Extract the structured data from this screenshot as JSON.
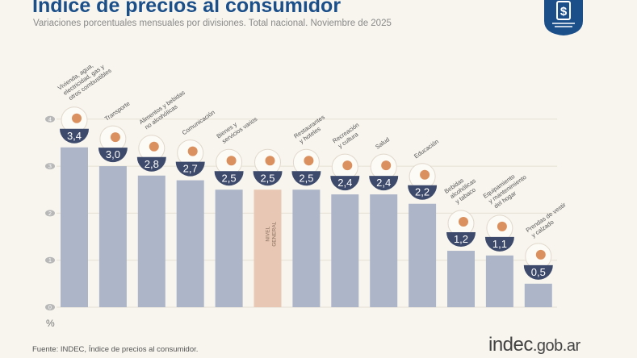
{
  "header": {
    "title": "Índice de precios al consumidor",
    "subtitle": "Variaciones porcentuales mensuales por divisiones. Total nacional. Noviembre de 2025"
  },
  "footer": {
    "source": "Fuente: INDEC, Índice de precios al consumidor.",
    "brand_main": "indec",
    "brand_suffix": ".gob.ar"
  },
  "colors": {
    "bar": "#adb5c8",
    "highlight_bar": "#e8c8b4",
    "badge": "#3d4a6b",
    "title": "#1b4f8a",
    "icon_accent": "#d2773a"
  },
  "chart_data": {
    "type": "bar",
    "title": "Índice de precios al consumidor",
    "unit": "%",
    "ylim": [
      0,
      4
    ],
    "yticks": [
      0,
      1,
      2,
      3,
      4
    ],
    "grid": true,
    "categories": [
      "Vivienda, agua, electricidad, gas y otros combustibles",
      "Transporte",
      "Alimentos y bebidas no alcohólicas",
      "Comunicación",
      "Bienes y servicios varios",
      "NIVEL GENERAL",
      "Restaurantes y hoteles",
      "Recreación y cultura",
      "Salud",
      "Educación",
      "Bebidas alcohólicas y tabaco",
      "Equipamiento y mantenimiento del hogar",
      "Prendas de vestir y calzado"
    ],
    "label_lines": [
      [
        "Vivienda, agua,",
        "electricidad, gas y",
        "otros combustibles"
      ],
      [
        "Transporte"
      ],
      [
        "Alimentos y bebidas",
        "no alcohólicas"
      ],
      [
        "Comunicación"
      ],
      [
        "Bienes y",
        "servicios varios"
      ],
      [],
      [
        "Restaurantes",
        "y hoteles"
      ],
      [
        "Recreación",
        "y cultura"
      ],
      [
        "Salud"
      ],
      [
        "Educación"
      ],
      [
        "Bebidas",
        "alcohólicas",
        "y tabaco"
      ],
      [
        "Equipamiento",
        "y mantenimiento",
        "del hogar"
      ],
      [
        "Prendas de vestir",
        "y calzado"
      ]
    ],
    "inner_label_lines": [
      "NIVEL",
      "GENERAL"
    ],
    "values": [
      3.4,
      3.0,
      2.8,
      2.7,
      2.5,
      2.5,
      2.5,
      2.4,
      2.4,
      2.2,
      1.2,
      1.1,
      0.5
    ],
    "value_labels": [
      "3,4",
      "3,0",
      "2,8",
      "2,7",
      "2,5",
      "2,5",
      "2,5",
      "2,4",
      "2,4",
      "2,2",
      "1,2",
      "1,1",
      "0,5"
    ],
    "highlight_index": 5
  }
}
